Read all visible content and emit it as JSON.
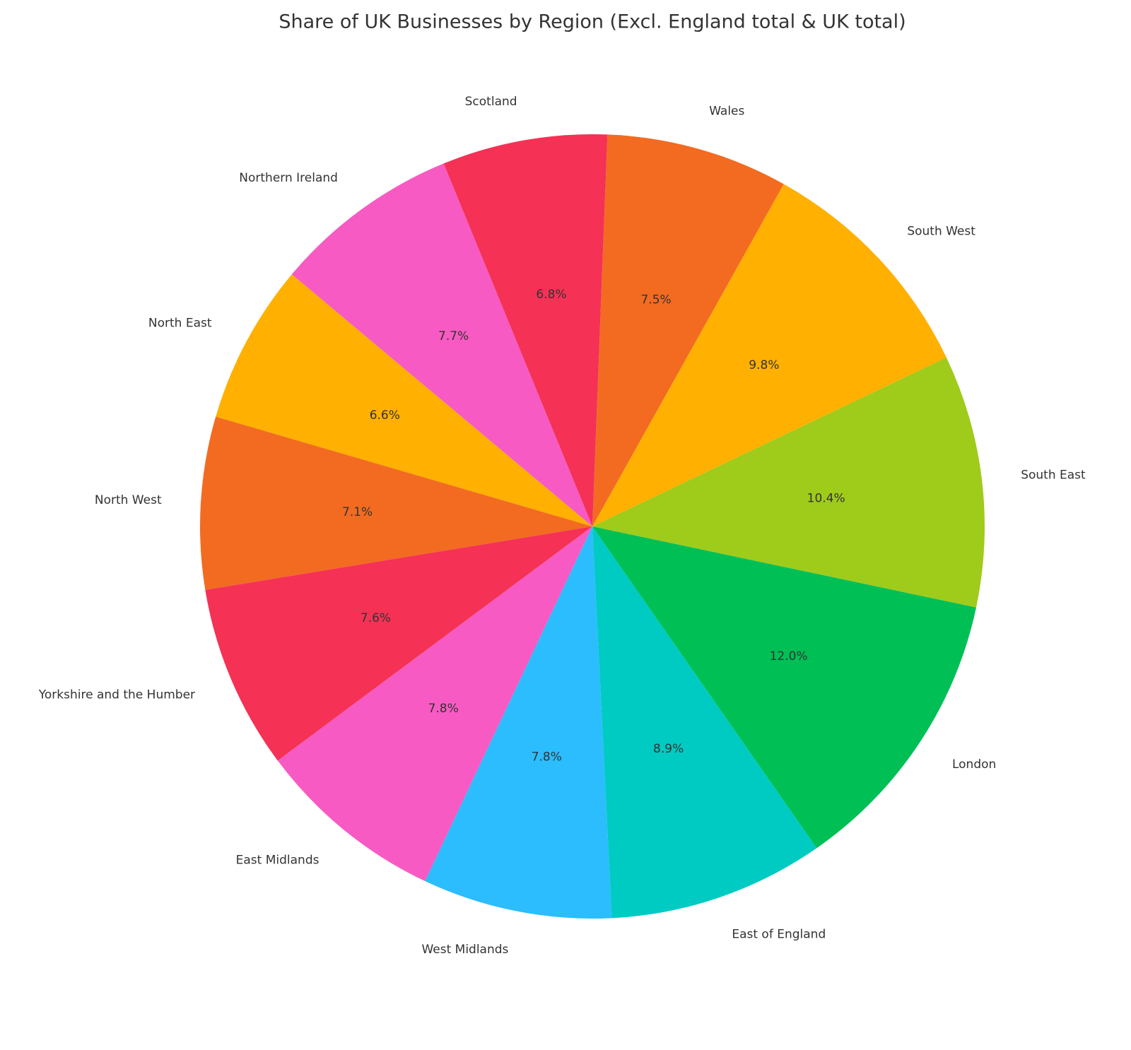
{
  "chart_data": {
    "type": "pie",
    "title": "Share of UK Businesses by Region (Excl. England total & UK total)",
    "categories": [
      "North East",
      "North West",
      "Yorkshire and the Humber",
      "East Midlands",
      "West Midlands",
      "East of England",
      "London",
      "South East",
      "South West",
      "Wales",
      "Scotland",
      "Northern Ireland"
    ],
    "values": [
      6.6,
      7.1,
      7.6,
      7.8,
      7.8,
      8.9,
      12.0,
      10.4,
      9.8,
      7.5,
      6.8,
      7.7
    ],
    "value_labels": [
      "6.6%",
      "7.1%",
      "7.6%",
      "7.8%",
      "7.8%",
      "8.9%",
      "12.0%",
      "10.4%",
      "9.8%",
      "7.5%",
      "6.8%",
      "7.7%"
    ],
    "colors": [
      "#ffb000",
      "#f26b21",
      "#f53155",
      "#f75ac2",
      "#2bbdfd",
      "#00cbc3",
      "#00bf55",
      "#9fcb1b",
      "#ffb000",
      "#f26b21",
      "#f53155",
      "#f75ac2"
    ]
  }
}
